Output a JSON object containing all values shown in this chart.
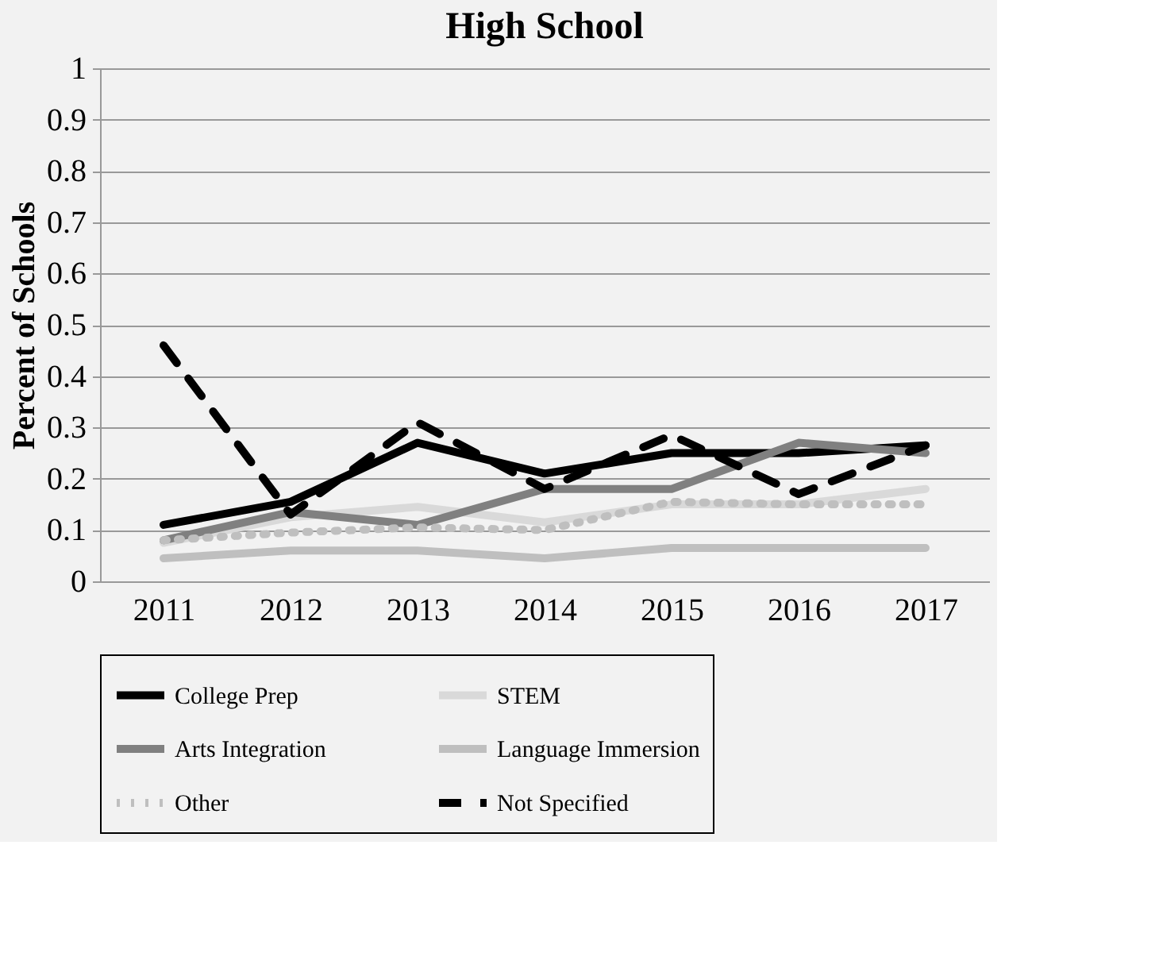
{
  "chart_data": {
    "type": "line",
    "title": "High School",
    "ylabel": "Percent of Schools",
    "categories": [
      "2011",
      "2012",
      "2013",
      "2014",
      "2015",
      "2016",
      "2017"
    ],
    "series": [
      {
        "name": "College Prep",
        "color": "#000000",
        "line_style": "solid",
        "values": [
          0.11,
          0.155,
          0.27,
          0.21,
          0.25,
          0.25,
          0.265
        ]
      },
      {
        "name": "STEM",
        "color": "#d9d9d9",
        "line_style": "solid",
        "values": [
          0.075,
          0.125,
          0.145,
          0.115,
          0.15,
          0.15,
          0.18
        ]
      },
      {
        "name": "Arts Integration",
        "color": "#808080",
        "line_style": "solid",
        "values": [
          0.08,
          0.135,
          0.11,
          0.18,
          0.18,
          0.27,
          0.25
        ]
      },
      {
        "name": "Language Immersion",
        "color": "#bfbfbf",
        "line_style": "solid",
        "values": [
          0.045,
          0.06,
          0.06,
          0.045,
          0.065,
          0.065,
          0.065
        ]
      },
      {
        "name": "Other",
        "color": "#bfbfbf",
        "line_style": "dotted",
        "values": [
          0.08,
          0.095,
          0.105,
          0.1,
          0.155,
          0.15,
          0.15
        ]
      },
      {
        "name": "Not Specified",
        "color": "#000000",
        "line_style": "dashed",
        "values": [
          0.46,
          0.13,
          0.31,
          0.18,
          0.285,
          0.17,
          0.265
        ]
      }
    ],
    "ylim": [
      0,
      1
    ],
    "yticks": [
      0,
      0.1,
      0.2,
      0.3,
      0.4,
      0.5,
      0.6,
      0.7,
      0.8,
      0.9,
      1
    ],
    "grid": "y",
    "legend": "bottom",
    "marker": "none"
  }
}
